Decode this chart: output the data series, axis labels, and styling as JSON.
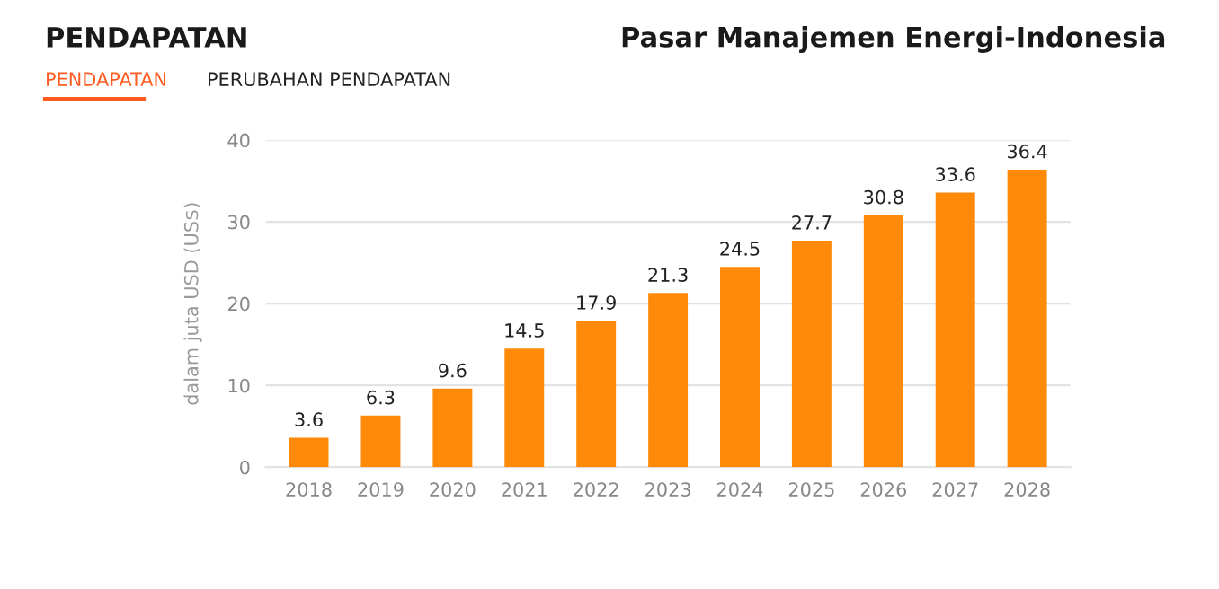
{
  "chart_data": {
    "type": "bar",
    "title": "PENDAPATAN",
    "subtitle": "Pasar Manajemen Energi-Indonesia",
    "annotations": [
      "PENDAPATAN",
      "PERUBAHAN PENDAPATAN"
    ],
    "ylabel": "dalam juta USD (US$)",
    "categories": [
      "2018",
      "2019",
      "2020",
      "2021",
      "2022",
      "2023",
      "2024",
      "2025",
      "2026",
      "2027",
      "2028"
    ],
    "values": [
      3.6,
      6.3,
      9.6,
      14.5,
      17.9,
      21.3,
      24.5,
      27.7,
      30.8,
      33.6,
      36.4
    ],
    "color": "#ff8a0a",
    "ylim": [
      0,
      40
    ],
    "yticks": [
      0,
      10,
      20,
      30,
      40
    ],
    "grid": "y",
    "data_labels": true
  }
}
